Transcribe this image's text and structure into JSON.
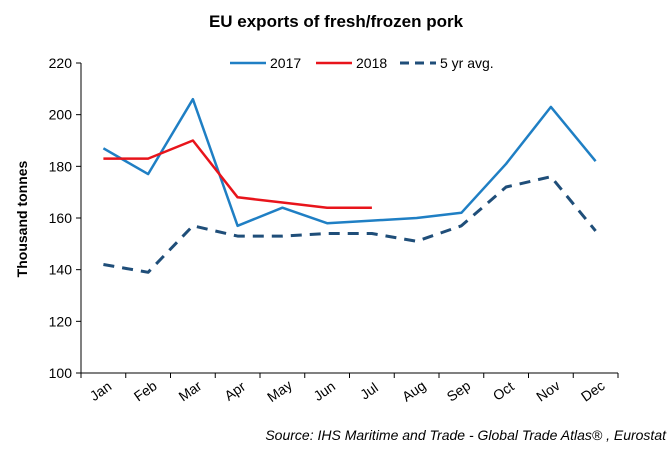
{
  "chart_data": {
    "type": "line",
    "title": "EU exports of fresh/frozen pork",
    "ylabel": "Thousand tonnes",
    "xlabel": "",
    "categories": [
      "Jan",
      "Feb",
      "Mar",
      "Apr",
      "May",
      "Jun",
      "Jul",
      "Aug",
      "Sep",
      "Oct",
      "Nov",
      "Dec"
    ],
    "ylim": [
      100,
      220
    ],
    "yticks": [
      100,
      120,
      140,
      160,
      180,
      200,
      220
    ],
    "grid": false,
    "legend_position": "top-center",
    "series": [
      {
        "name": "2017",
        "color": "#1f7fc4",
        "dash": "solid",
        "values": [
          187,
          177,
          206,
          157,
          164,
          158,
          159,
          160,
          162,
          181,
          203,
          182
        ]
      },
      {
        "name": "2018",
        "color": "#e8141b",
        "dash": "solid",
        "values": [
          183,
          183,
          190,
          168,
          166,
          164,
          164,
          null,
          null,
          null,
          null,
          null
        ]
      },
      {
        "name": "5 yr avg.",
        "color": "#1f4e79",
        "dash": "dashed",
        "values": [
          142,
          139,
          157,
          153,
          153,
          154,
          154,
          151,
          157,
          172,
          176,
          155
        ]
      }
    ],
    "source": "Source: IHS Maritime and Trade - Global Trade Atlas® , Eurostat"
  }
}
